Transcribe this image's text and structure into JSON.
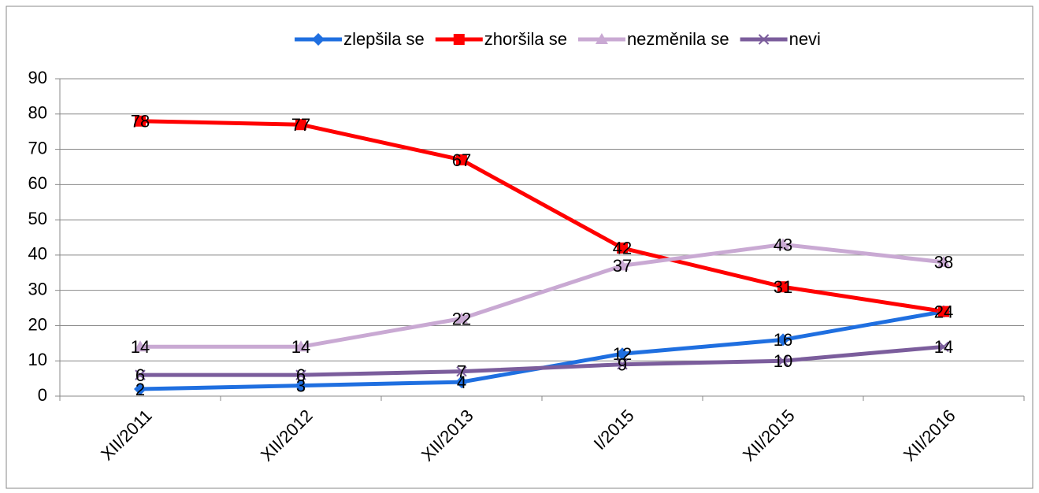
{
  "chart_data": {
    "type": "line",
    "categories": [
      "XII/2011",
      "XII/2012",
      "XII/2013",
      "I/2015",
      "XII/2015",
      "XII/2016"
    ],
    "series": [
      {
        "name": "zlepšila se",
        "color": "#1f6fe0",
        "marker": "diamond",
        "values": [
          2,
          3,
          4,
          12,
          16,
          24
        ]
      },
      {
        "name": "zhoršila se",
        "color": "#ff0000",
        "marker": "square",
        "values": [
          78,
          77,
          67,
          42,
          31,
          24
        ]
      },
      {
        "name": "nezměnila se",
        "color": "#c9a9d3",
        "marker": "triangle",
        "values": [
          14,
          14,
          22,
          37,
          43,
          38
        ]
      },
      {
        "name": "nevi",
        "color": "#7b5d9c",
        "marker": "x",
        "values": [
          6,
          6,
          7,
          9,
          10,
          14
        ]
      }
    ],
    "ylim": [
      0,
      90
    ],
    "yticks": [
      0,
      10,
      20,
      30,
      40,
      50,
      60,
      70,
      80,
      90
    ],
    "grid": true,
    "legend": "top"
  }
}
